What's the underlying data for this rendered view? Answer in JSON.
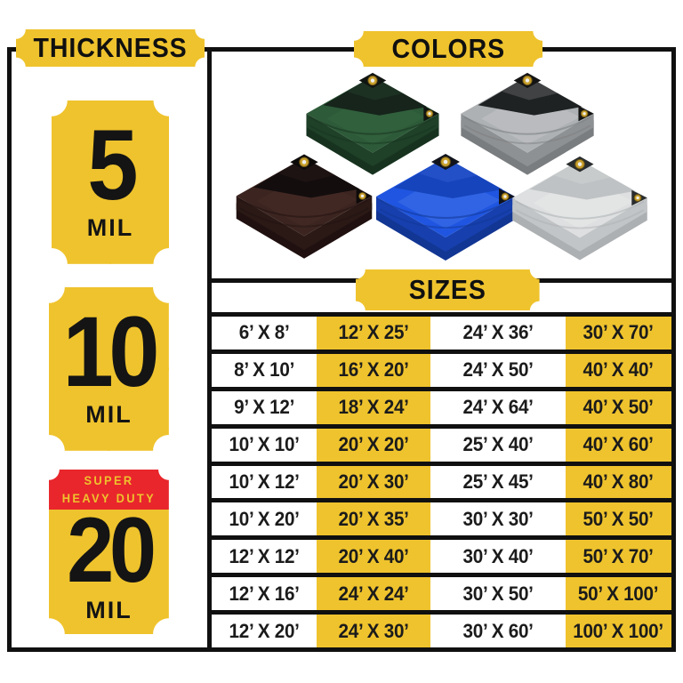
{
  "palette": {
    "yellow": "#EFC32D",
    "red": "#E8262C",
    "ink": "#101010",
    "grommet_gold": "#C8A02C",
    "background": "#FFFFFF"
  },
  "thickness_panel": {
    "header": "THICKNESS",
    "badges": [
      {
        "value": "5",
        "unit": "MIL"
      },
      {
        "value": "10",
        "unit": "MIL"
      },
      {
        "value": "20",
        "unit": "MIL",
        "tag": [
          "SUPER",
          "HEAVY DUTY"
        ]
      }
    ]
  },
  "colors_panel": {
    "header": "COLORS",
    "tarps": [
      {
        "name": "green-tarp",
        "main": "#2D5A38",
        "flap": "#16241B",
        "band1": "#1F4128",
        "band2": "#17331F",
        "light": "#3E7048",
        "patch": "#101511"
      },
      {
        "name": "silver-black-tarp",
        "main": "#AEB1B3",
        "flap": "#1F2223",
        "band1": "#8E9193",
        "band2": "#7A7D7F",
        "light": "#D6D8DA",
        "patch": "#141414"
      },
      {
        "name": "brown-tarp",
        "main": "#3C2520",
        "flap": "#130D0E",
        "band1": "#2B1916",
        "band2": "#201110",
        "light": "#54312A",
        "patch": "#0D0A0A"
      },
      {
        "name": "blue-tarp",
        "main": "#1F55E0",
        "flap": "#1644BC",
        "band1": "#1740AE",
        "band2": "#123693",
        "light": "#5C8BF2",
        "patch": "#10131C"
      },
      {
        "name": "white-silver-tarp",
        "main": "#DDDFE0",
        "flap": "#BFC2C4",
        "band1": "#C2C5C7",
        "band2": "#ADB0B2",
        "light": "#F3F4F5",
        "patch": "#2A2D2E"
      }
    ]
  },
  "sizes_panel": {
    "header": "SIZES",
    "highlight_columns": [
      1,
      3
    ],
    "rows": [
      [
        "6’ X 8’",
        "12’ X 25’",
        "24’ X 36’",
        "30’ X 70’"
      ],
      [
        "8’ X 10’",
        "16’ X 20’",
        "24’ X 50’",
        "40’ X 40’"
      ],
      [
        "9’ X 12’",
        "18’ X 24’",
        "24’ X 64’",
        "40’ X 50’"
      ],
      [
        "10’ X 10’",
        "20’ X 20’",
        "25’ X 40’",
        "40’ X 60’"
      ],
      [
        "10’ X 12’",
        "20’ X 30’",
        "25’ X 45’",
        "40’ X 80’"
      ],
      [
        "10’ X 20’",
        "20’ X 35’",
        "30’ X 30’",
        "50’ X 50’"
      ],
      [
        "12’ X 12’",
        "20’ X 40’",
        "30’ X 40’",
        "50’ X 70’"
      ],
      [
        "12’ X 16’",
        "24’ X 24’",
        "30’ X 50’",
        "50’ X 100’"
      ],
      [
        "12’ X 20’",
        "24’ X 30’",
        "30’ X 60’",
        "100’ X 100’"
      ]
    ]
  }
}
